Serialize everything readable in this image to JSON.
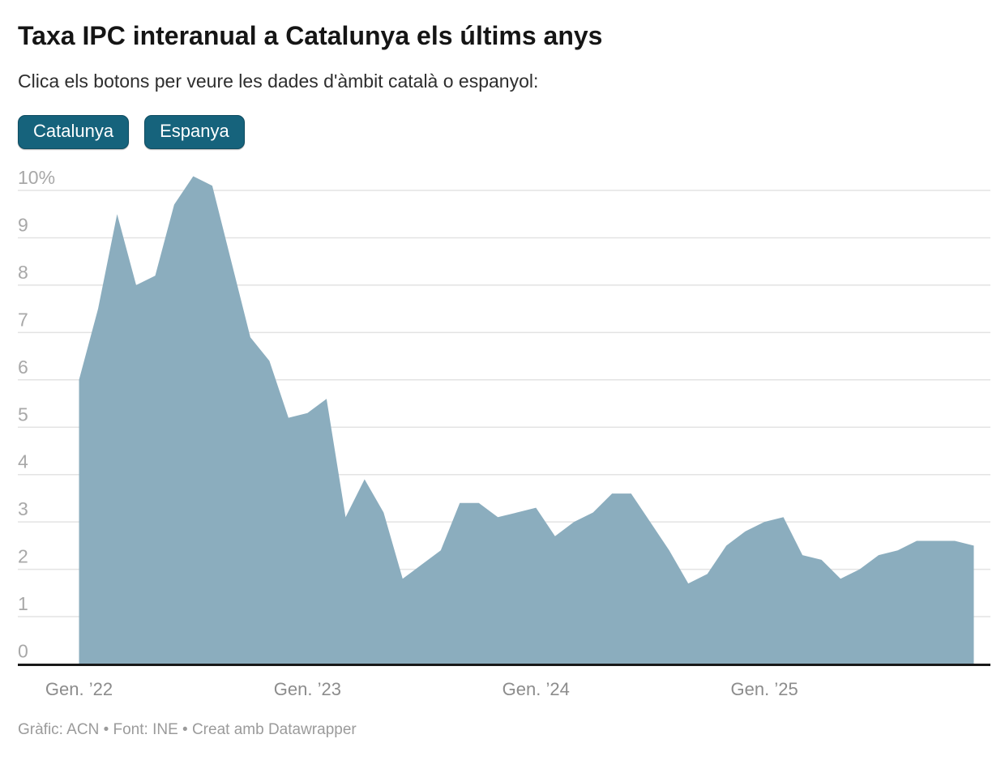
{
  "header": {
    "title": "Taxa IPC interanual a Catalunya els últims anys",
    "subtitle": "Clica els botons per veure les dades d'àmbit català o espanyol:"
  },
  "buttons": [
    {
      "label": "Catalunya",
      "active": true
    },
    {
      "label": "Espanya",
      "active": false
    }
  ],
  "colors": {
    "area": "#8badbe",
    "button_bg": "#16637c",
    "baseline": "#191919",
    "gridline": "#e3e3e3"
  },
  "footer": {
    "text": "Gràfic: ACN • Font: INE • Creat amb Datawrapper"
  },
  "chart_data": {
    "type": "area",
    "title": "Taxa IPC interanual a Catalunya els últims anys",
    "series_name": "Catalunya",
    "unit": "%",
    "grid": true,
    "ylim": [
      0,
      10.5
    ],
    "y_ticks": [
      0,
      1,
      2,
      3,
      4,
      5,
      6,
      7,
      8,
      9,
      10
    ],
    "y_top_label": "10%",
    "x": [
      "2022-01",
      "2022-02",
      "2022-03",
      "2022-04",
      "2022-05",
      "2022-06",
      "2022-07",
      "2022-08",
      "2022-09",
      "2022-10",
      "2022-11",
      "2022-12",
      "2023-01",
      "2023-02",
      "2023-03",
      "2023-04",
      "2023-05",
      "2023-06",
      "2023-07",
      "2023-08",
      "2023-09",
      "2023-10",
      "2023-11",
      "2023-12",
      "2024-01",
      "2024-02",
      "2024-03",
      "2024-04",
      "2024-05",
      "2024-06",
      "2024-07",
      "2024-08",
      "2024-09",
      "2024-10",
      "2024-11",
      "2024-12",
      "2025-01",
      "2025-02",
      "2025-03",
      "2025-04",
      "2025-05",
      "2025-06",
      "2025-07",
      "2025-08",
      "2025-09",
      "2025-10",
      "2025-11",
      "2025-12"
    ],
    "values": [
      6.0,
      7.5,
      9.5,
      8.0,
      8.2,
      9.7,
      10.3,
      10.1,
      8.5,
      6.9,
      6.4,
      5.2,
      5.3,
      5.6,
      3.1,
      3.9,
      3.2,
      1.8,
      2.1,
      2.4,
      3.4,
      3.4,
      3.1,
      3.2,
      3.3,
      2.7,
      3.0,
      3.2,
      3.6,
      3.6,
      3.0,
      2.4,
      1.7,
      1.9,
      2.5,
      2.8,
      3.0,
      3.1,
      2.3,
      2.2,
      1.8,
      2.0,
      2.3,
      2.4,
      2.6,
      2.6,
      2.6,
      2.5
    ],
    "x_tick_labels": [
      {
        "month_index": 0,
        "label": "Gen. ’22"
      },
      {
        "month_index": 12,
        "label": "Gen. ’23"
      },
      {
        "month_index": 24,
        "label": "Gen. ’24"
      },
      {
        "month_index": 36,
        "label": "Gen. ’25"
      }
    ]
  }
}
